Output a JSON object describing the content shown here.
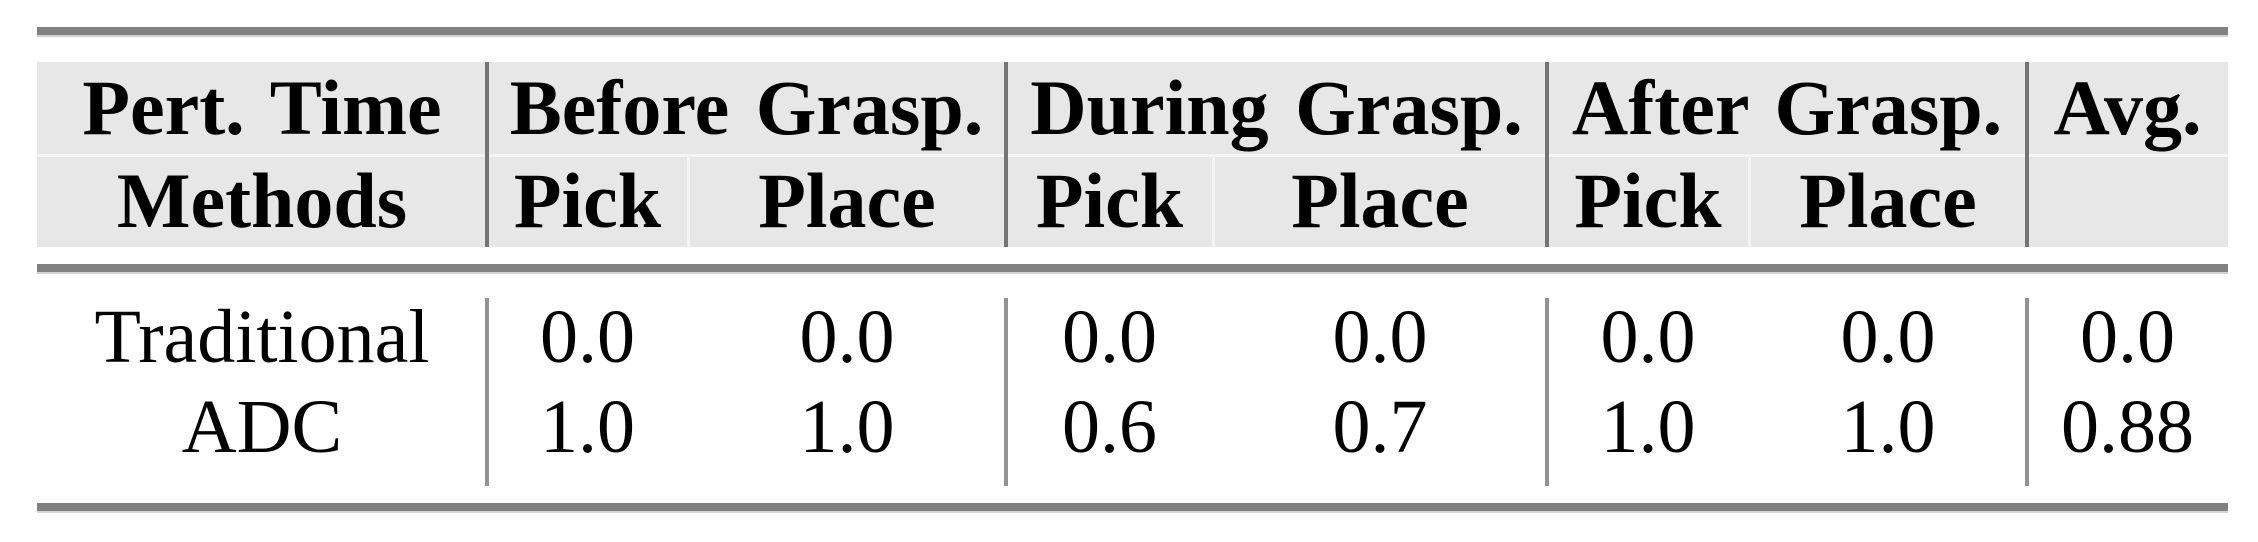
{
  "table": {
    "header": {
      "col1_row1": "Pert. Time",
      "col1_row2": "Methods",
      "groups": [
        {
          "label": "Before Grasp.",
          "sub": [
            "Pick",
            "Place"
          ]
        },
        {
          "label": "During Grasp.",
          "sub": [
            "Pick",
            "Place"
          ]
        },
        {
          "label": "After Grasp.",
          "sub": [
            "Pick",
            "Place"
          ]
        }
      ],
      "avg_label": "Avg."
    },
    "rows": [
      {
        "method": "Traditional",
        "values": [
          "0.0",
          "0.0",
          "0.0",
          "0.0",
          "0.0",
          "0.0",
          "0.0"
        ]
      },
      {
        "method": "ADC",
        "values": [
          "1.0",
          "1.0",
          "0.6",
          "0.7",
          "1.0",
          "1.0",
          "0.88"
        ]
      }
    ]
  },
  "colors": {
    "rule": "#818181",
    "divider": "#747474",
    "header_bg": "#e7e7e7",
    "faint_line": "#f4f4f4",
    "text": "#000000"
  }
}
